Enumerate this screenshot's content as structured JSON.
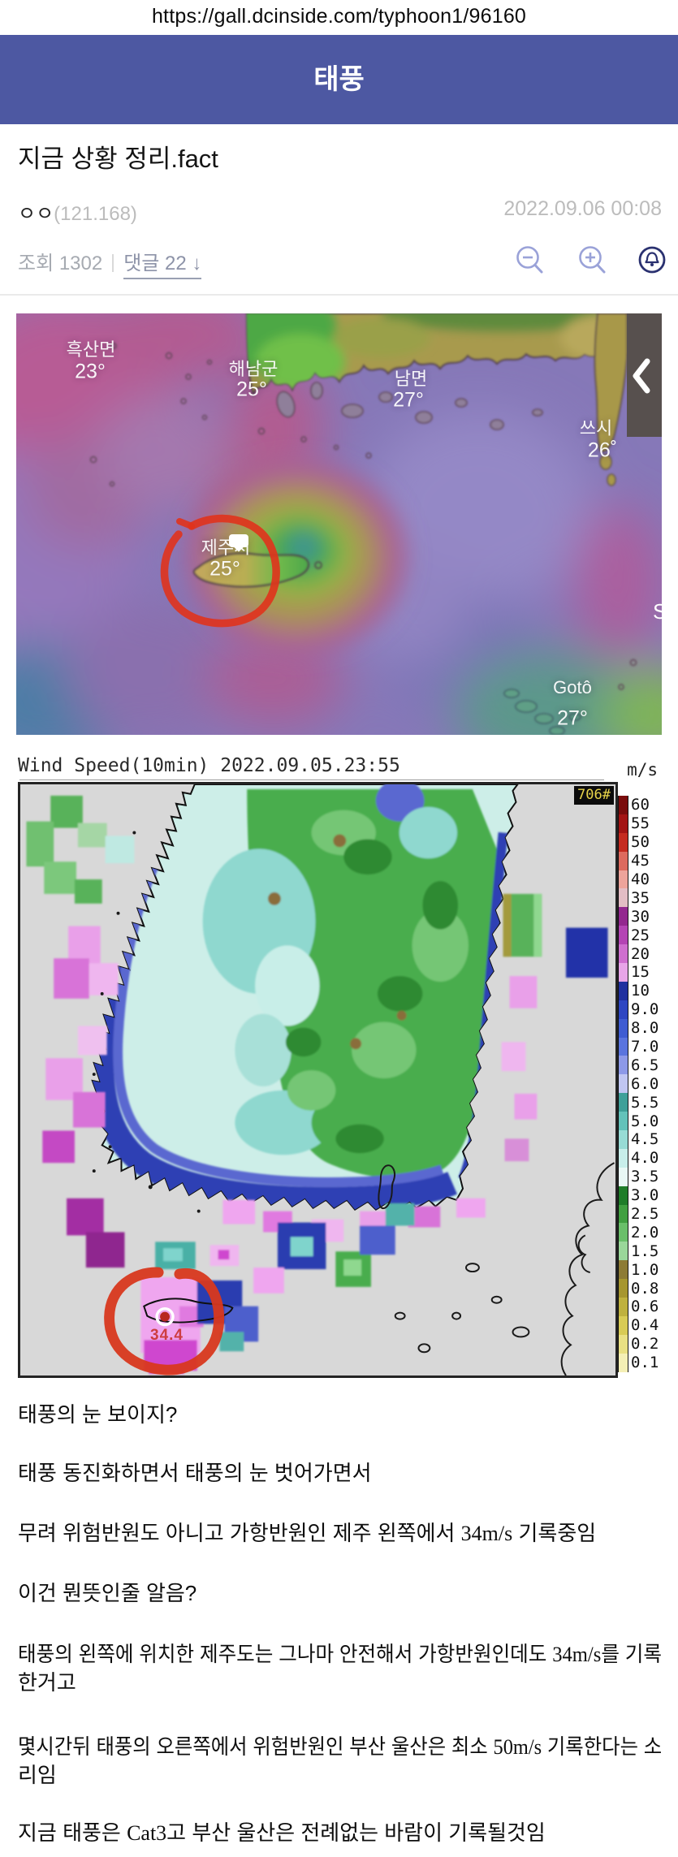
{
  "url": "https://gall.dcinside.com/typhoon1/96160",
  "header": {
    "title": "태풍",
    "bg": "#4d58a2"
  },
  "post": {
    "title": "지금 상황 정리.fact",
    "author": "ㅇㅇ",
    "author_ip": "(121.168)",
    "timestamp": "2022.09.06 00:08",
    "views": "조회 1302",
    "comments": "댓글 22",
    "comments_arrow": "↓"
  },
  "toolbar_icons": [
    "zoom-out",
    "zoom-in",
    "notification-bell"
  ],
  "map1": {
    "labels": [
      {
        "name": "흑산면",
        "temp": "23°"
      },
      {
        "name": "해남군",
        "temp": "25°"
      },
      {
        "name": "남면",
        "temp": "27°"
      },
      {
        "name": "쓰시",
        "temp": "26˚"
      },
      {
        "name": "제주시",
        "temp": "25°"
      },
      {
        "name": "Gotô",
        "temp": "27°"
      }
    ],
    "edge_letter": "S"
  },
  "map2": {
    "title": "Wind Speed(10min) 2022.09.05.23:55",
    "unit": "m/s",
    "station_badge": "706#",
    "station_value": "34.4",
    "scale": [
      {
        "label": "60",
        "color": "#7a0c0c"
      },
      {
        "label": "55",
        "color": "#a31414"
      },
      {
        "label": "50",
        "color": "#c52b20"
      },
      {
        "label": "45",
        "color": "#dd6a5e"
      },
      {
        "label": "40",
        "color": "#eda49b"
      },
      {
        "label": "35",
        "color": "#e3bdc4"
      },
      {
        "label": "30",
        "color": "#93278f"
      },
      {
        "label": "25",
        "color": "#b444b4"
      },
      {
        "label": "20",
        "color": "#cf6fcf"
      },
      {
        "label": "15",
        "color": "#e8a5e8"
      },
      {
        "label": "10",
        "color": "#20309f"
      },
      {
        "label": "9.0",
        "color": "#2e46c2"
      },
      {
        "label": "8.0",
        "color": "#3f5cd2"
      },
      {
        "label": "7.0",
        "color": "#5a74de"
      },
      {
        "label": "6.5",
        "color": "#8d99e8"
      },
      {
        "label": "6.0",
        "color": "#c0c6f2"
      },
      {
        "label": "5.5",
        "color": "#3fa099"
      },
      {
        "label": "5.0",
        "color": "#63c2ba"
      },
      {
        "label": "4.5",
        "color": "#97dbd5"
      },
      {
        "label": "4.0",
        "color": "#c8eeea"
      },
      {
        "label": "3.5",
        "color": "#e9f8f5"
      },
      {
        "label": "3.0",
        "color": "#1f7d29"
      },
      {
        "label": "2.5",
        "color": "#41a041"
      },
      {
        "label": "2.0",
        "color": "#6abf6a"
      },
      {
        "label": "1.5",
        "color": "#9ad79a"
      },
      {
        "label": "1.0",
        "color": "#8d7b35"
      },
      {
        "label": "0.8",
        "color": "#a6962f"
      },
      {
        "label": "0.6",
        "color": "#bfb13e"
      },
      {
        "label": "0.4",
        "color": "#d8cb55"
      },
      {
        "label": "0.2",
        "color": "#e9e083"
      },
      {
        "label": "0.1",
        "color": "#f4efb5"
      }
    ]
  },
  "paragraphs": [
    {
      "lines": [
        "태풍의 눈 보이지?"
      ]
    },
    {
      "lines": [
        "태풍 동진화하면서 태풍의 눈 벗어가면서"
      ]
    },
    {
      "lines": [
        "무려 위험반원도 아니고 가항반원인 제주 왼쪽에서 34m/s 기록중임"
      ]
    },
    {
      "lines": [
        "이건 뭔뜻인줄 알음?"
      ]
    },
    {
      "lines": [
        "태풍의 왼쪽에 위치한 제주도는  그나마 안전해서 가항반원인데도 34m/s를 기록",
        "한거고"
      ]
    },
    {
      "lines": [
        "몇시간뒤 태풍의 오른쪽에서 위험반원인 부산 울산은 최소 50m/s 기록한다는 소",
        "리임"
      ]
    },
    {
      "lines": [
        "지금 태풍은 Cat3고 부산 울산은 전례없는 바람이 기록될것임"
      ]
    }
  ]
}
